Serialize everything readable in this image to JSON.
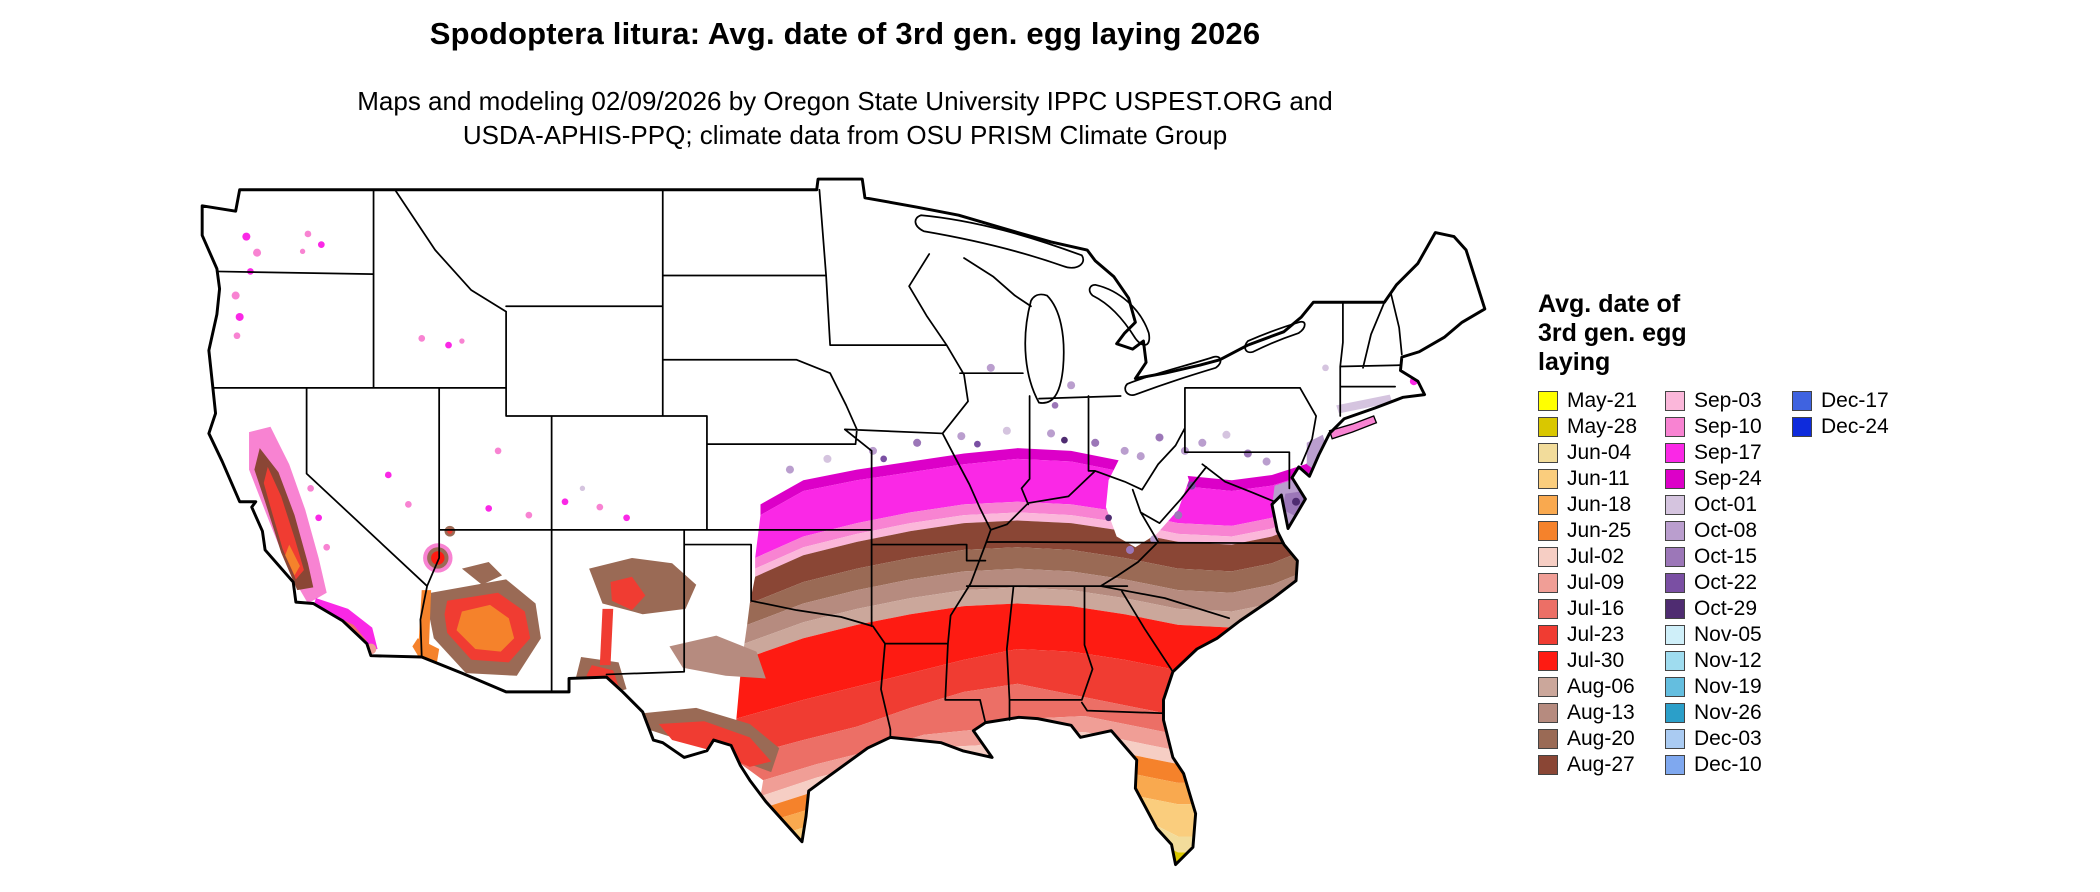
{
  "header": {
    "title": "Spodoptera litura: Avg. date of 3rd gen. egg laying 2026",
    "subtitle_line1": "Maps and modeling 02/09/2026 by Oregon State University IPPC USPEST.ORG and",
    "subtitle_line2": "USDA-APHIS-PPQ; climate data from OSU PRISM Climate Group"
  },
  "legend": {
    "title_lines": [
      "Avg. date of",
      "3rd gen. egg",
      "laying"
    ],
    "columns": [
      {
        "items": [
          {
            "label": "May-21",
            "color": "#FFFF00"
          },
          {
            "label": "May-28",
            "color": "#D9C700"
          },
          {
            "label": "Jun-04",
            "color": "#F2DC9B"
          },
          {
            "label": "Jun-11",
            "color": "#FACD7D"
          },
          {
            "label": "Jun-18",
            "color": "#F9A94F"
          },
          {
            "label": "Jun-25",
            "color": "#F5822B"
          },
          {
            "label": "Jul-02",
            "color": "#F6CEC4"
          },
          {
            "label": "Jul-09",
            "color": "#F09E96"
          },
          {
            "label": "Jul-16",
            "color": "#EC6F66"
          },
          {
            "label": "Jul-23",
            "color": "#F03C32"
          },
          {
            "label": "Jul-30",
            "color": "#FE1B12"
          },
          {
            "label": "Aug-06",
            "color": "#CBA79B"
          },
          {
            "label": "Aug-13",
            "color": "#B68B7F"
          },
          {
            "label": "Aug-20",
            "color": "#9A6A55"
          },
          {
            "label": "Aug-27",
            "color": "#8A4635"
          }
        ]
      },
      {
        "items": [
          {
            "label": "Sep-03",
            "color": "#FBB7DA"
          },
          {
            "label": "Sep-10",
            "color": "#F883D2"
          },
          {
            "label": "Sep-17",
            "color": "#FA28E6"
          },
          {
            "label": "Sep-24",
            "color": "#DC00C8"
          },
          {
            "label": "Oct-01",
            "color": "#D5C4DF"
          },
          {
            "label": "Oct-08",
            "color": "#BA9ECE"
          },
          {
            "label": "Oct-15",
            "color": "#9C77B8"
          },
          {
            "label": "Oct-22",
            "color": "#7A4FA3"
          },
          {
            "label": "Oct-29",
            "color": "#4F2C71"
          },
          {
            "label": "Nov-05",
            "color": "#CFEFF9"
          },
          {
            "label": "Nov-12",
            "color": "#9FDCEF"
          },
          {
            "label": "Nov-19",
            "color": "#64BEDF"
          },
          {
            "label": "Nov-26",
            "color": "#2B9FC9"
          },
          {
            "label": "Dec-03",
            "color": "#AACBF2"
          },
          {
            "label": "Dec-10",
            "color": "#7FA8EF"
          }
        ]
      },
      {
        "items": [
          {
            "label": "Dec-17",
            "color": "#3F63E0"
          },
          {
            "label": "Dec-24",
            "color": "#0E2BDC"
          }
        ]
      }
    ]
  }
}
